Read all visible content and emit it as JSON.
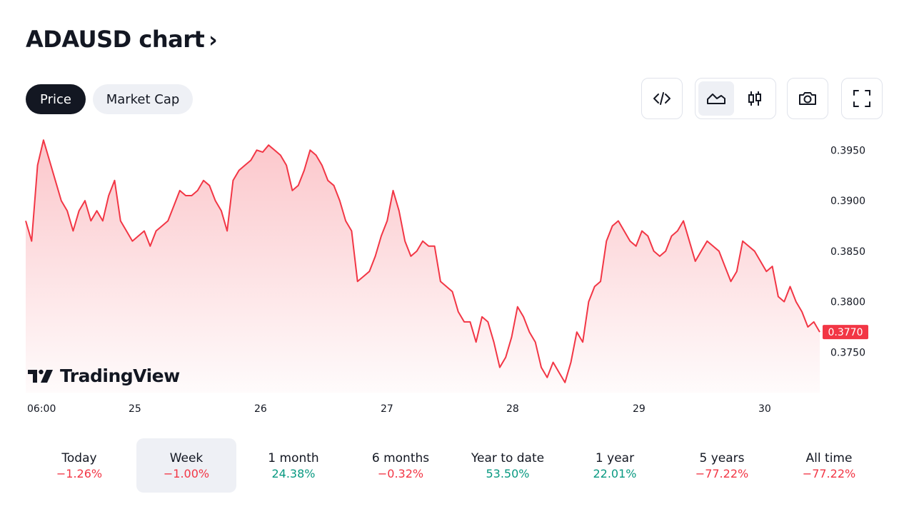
{
  "header": {
    "title": "ADAUSD chart",
    "chevron": "›"
  },
  "tabs": [
    {
      "label": "Price",
      "active": true
    },
    {
      "label": "Market Cap",
      "active": false
    }
  ],
  "toolbar": {
    "embed_icon": "code-embed-icon",
    "area_icon": "area-chart-icon",
    "candles_icon": "candlestick-icon",
    "snapshot_icon": "camera-icon",
    "fullscreen_icon": "fullscreen-icon"
  },
  "watermark": {
    "text": "TradingView",
    "icon": "tradingview-logo-icon"
  },
  "colors": {
    "line": "#f23645",
    "positive": "#089981",
    "negative": "#f23645",
    "dark": "#131722"
  },
  "chart_data": {
    "type": "area",
    "symbol": "ADAUSD",
    "x_labels": [
      "06:00",
      "25",
      "26",
      "27",
      "28",
      "29",
      "30"
    ],
    "y_ticks": [
      0.395,
      0.39,
      0.385,
      0.38,
      0.375
    ],
    "ylim": [
      0.371,
      0.397
    ],
    "last_price": "0.3770",
    "series": [
      {
        "values": [
          0.388,
          0.386,
          0.3935,
          0.396,
          0.394,
          0.392,
          0.39,
          0.389,
          0.387,
          0.389,
          0.39,
          0.388,
          0.389,
          0.388,
          0.3905,
          0.392,
          0.388,
          0.387,
          0.386,
          0.3865,
          0.387,
          0.3855,
          0.387,
          0.3875,
          0.388,
          0.3895,
          0.391,
          0.3905,
          0.3905,
          0.391,
          0.392,
          0.3915,
          0.39,
          0.389,
          0.387,
          0.392,
          0.393,
          0.3935,
          0.394,
          0.395,
          0.3948,
          0.3955,
          0.395,
          0.3945,
          0.3935,
          0.391,
          0.3915,
          0.393,
          0.395,
          0.3945,
          0.3935,
          0.392,
          0.3915,
          0.39,
          0.388,
          0.387,
          0.382,
          0.3825,
          0.383,
          0.3845,
          0.3865,
          0.388,
          0.391,
          0.389,
          0.386,
          0.3845,
          0.385,
          0.386,
          0.3855,
          0.3855,
          0.382,
          0.3815,
          0.381,
          0.379,
          0.378,
          0.378,
          0.376,
          0.3785,
          0.378,
          0.376,
          0.3735,
          0.3745,
          0.3765,
          0.3795,
          0.3785,
          0.377,
          0.376,
          0.3735,
          0.3725,
          0.374,
          0.373,
          0.372,
          0.374,
          0.377,
          0.376,
          0.38,
          0.3815,
          0.382,
          0.386,
          0.3875,
          0.388,
          0.387,
          0.386,
          0.3855,
          0.387,
          0.3865,
          0.385,
          0.3845,
          0.385,
          0.3865,
          0.387,
          0.388,
          0.386,
          0.384,
          0.385,
          0.386,
          0.3855,
          0.385,
          0.3835,
          0.382,
          0.383,
          0.386,
          0.3855,
          0.385,
          0.384,
          0.383,
          0.3835,
          0.3805,
          0.38,
          0.3815,
          0.38,
          0.379,
          0.3775,
          0.378,
          0.377
        ]
      }
    ]
  },
  "periods": [
    {
      "label": "Today",
      "value": "−1.26%",
      "trend": "neg",
      "selected": false
    },
    {
      "label": "Week",
      "value": "−1.00%",
      "trend": "neg",
      "selected": true
    },
    {
      "label": "1 month",
      "value": "24.38%",
      "trend": "pos",
      "selected": false
    },
    {
      "label": "6 months",
      "value": "−0.32%",
      "trend": "neg",
      "selected": false
    },
    {
      "label": "Year to date",
      "value": "53.50%",
      "trend": "pos",
      "selected": false
    },
    {
      "label": "1 year",
      "value": "22.01%",
      "trend": "pos",
      "selected": false
    },
    {
      "label": "5 years",
      "value": "−77.22%",
      "trend": "neg",
      "selected": false
    },
    {
      "label": "All time",
      "value": "−77.22%",
      "trend": "neg",
      "selected": false
    }
  ]
}
